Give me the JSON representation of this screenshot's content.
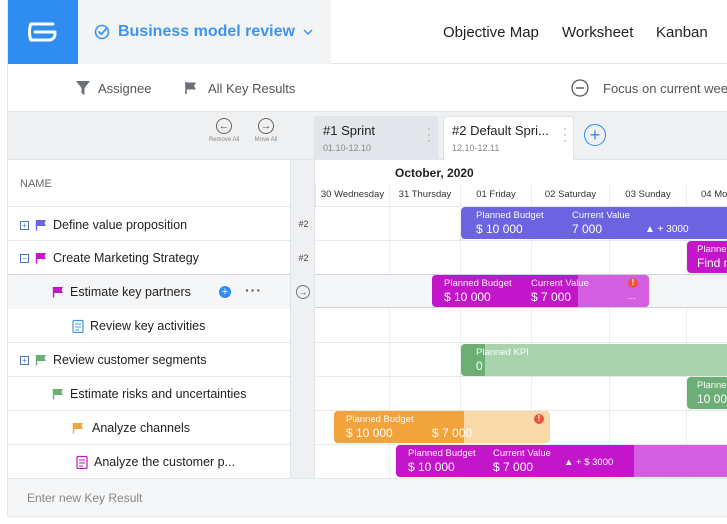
{
  "header": {
    "project_name": "Business model review",
    "nav": [
      "Objective Map",
      "Worksheet",
      "Kanban"
    ]
  },
  "filters": {
    "assignee": "Assignee",
    "key_results": "All Key Results",
    "focus": "Focus on current wee"
  },
  "sprint_controls": {
    "remove_all": "Remove All",
    "move_all": "Move All"
  },
  "sprints": [
    {
      "title": "#1   Sprint",
      "dates": "01.10-12.10"
    },
    {
      "title": "#2   Default Spri...",
      "dates": "12.10-12.11"
    }
  ],
  "columns": {
    "name_header": "NAME",
    "month": "October, 2020",
    "days": [
      "30 Wednesday",
      "31 Thursday",
      "01 Friday",
      "02 Saturday",
      "03 Sunday",
      "04 Mo"
    ]
  },
  "rows": [
    {
      "label": "Define value proposition",
      "tag": "#2",
      "expander": "+"
    },
    {
      "label": "Create Marketing Strategy",
      "tag": "#2",
      "expander": "−"
    },
    {
      "label": "Estimate key partners",
      "tag": ""
    },
    {
      "label": "Review key activities",
      "tag": ""
    },
    {
      "label": "Review customer segments",
      "tag": "",
      "expander": "+"
    },
    {
      "label": "Estimate risks and uncertainties",
      "tag": ""
    },
    {
      "label": "Analyze channels",
      "tag": ""
    },
    {
      "label": "Analyze the customer p...",
      "tag": ""
    }
  ],
  "bars": {
    "b1": {
      "l1": "Planned Budget",
      "v1": "$ 10 000",
      "l2": "Current Value",
      "v2": "7 000",
      "v3": "▲ +  3000"
    },
    "b2": {
      "l1": "Planne",
      "v1": "Find r"
    },
    "b3": {
      "l1": "Planned Budget",
      "v1": "$ 10 000",
      "l2": "Current Value",
      "v2": "$ 7 000",
      "dots": "..."
    },
    "b4": {
      "l1": "Planned KPI",
      "v1": "0"
    },
    "b5": {
      "l1": "Planne",
      "v1": "10 000"
    },
    "b6": {
      "l1": "Planned Budget",
      "v1": "$ 10 000",
      "v2": "$ 7 000"
    },
    "b7": {
      "l1": "Planned Budget",
      "v1": "$ 10 000",
      "l2": "Current Value",
      "v2": "$ 7 000",
      "v3": "▲ + $ 3000"
    }
  },
  "footer": {
    "placeholder": "Enter new Key Result"
  },
  "colors": {
    "brand": "#2f8cf0",
    "indigo": "#6c63e0",
    "magenta": "#c315c9",
    "green": "#6caf75",
    "orange": "#f3a33b"
  }
}
